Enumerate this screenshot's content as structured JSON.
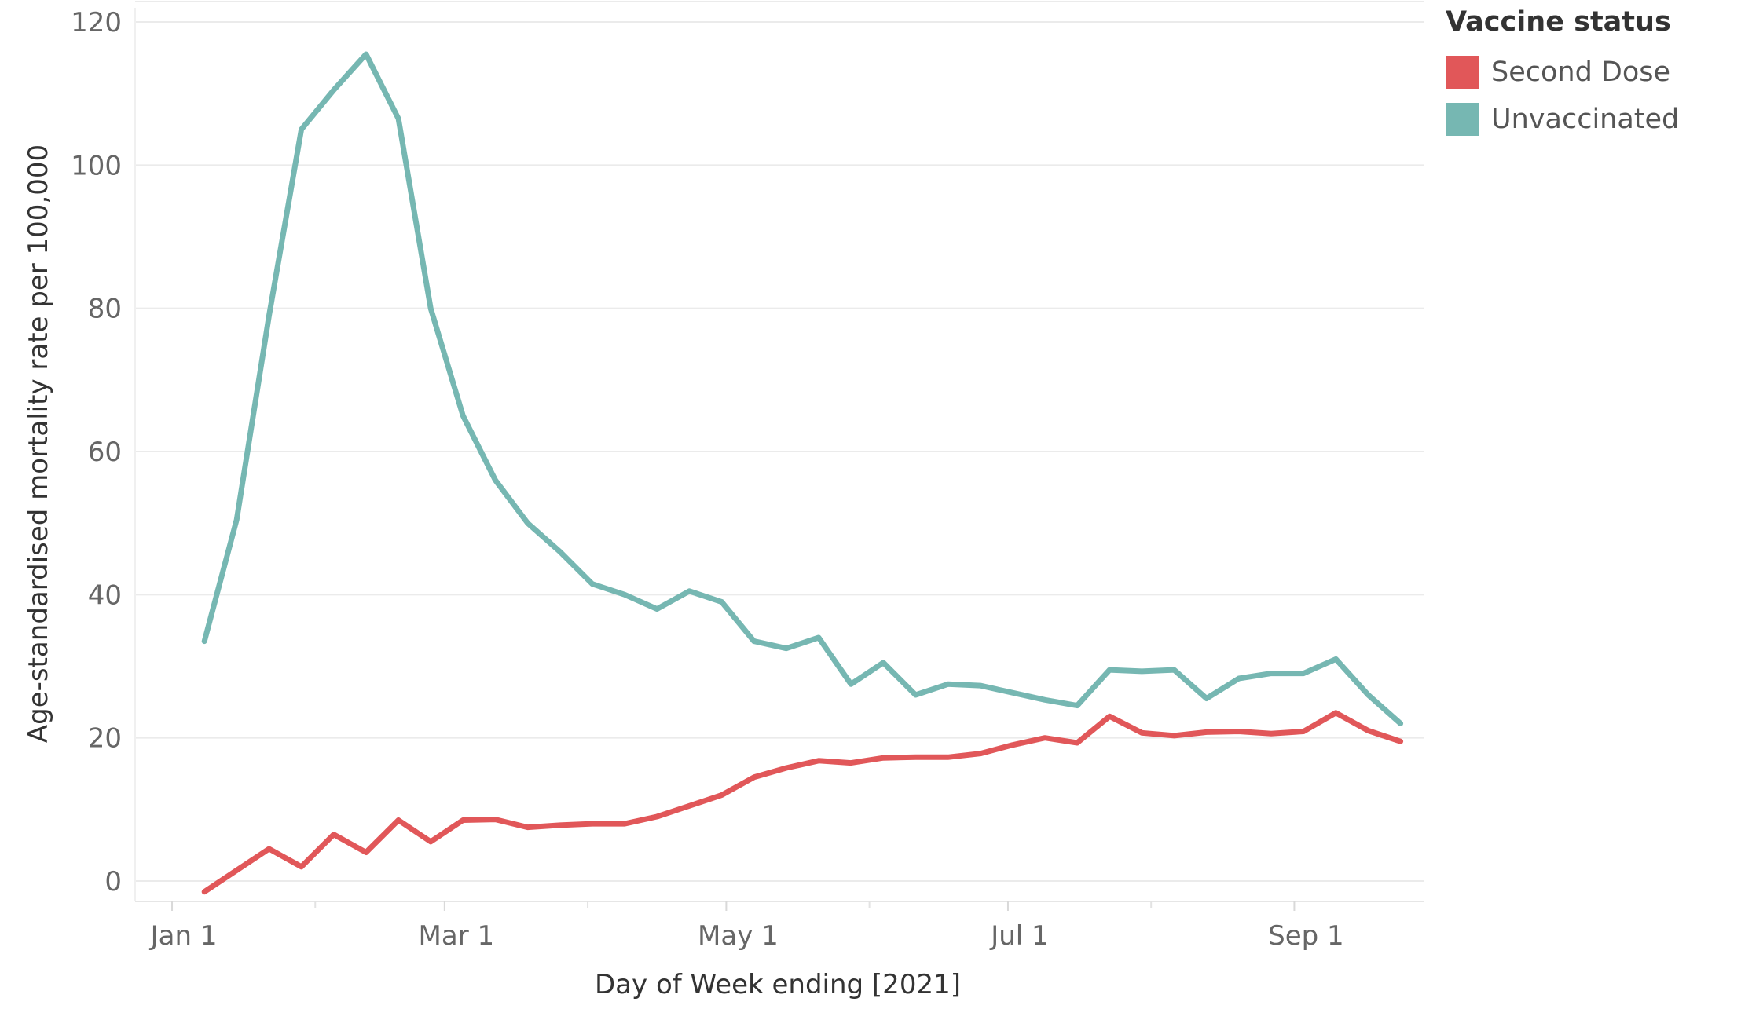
{
  "chart_data": {
    "type": "line",
    "title": "",
    "xlabel": "Day of Week ending [2021]",
    "ylabel": "Age-standardised mortality rate per 100,000",
    "ylim": [
      -3,
      120
    ],
    "yticks": [
      0,
      20,
      40,
      60,
      80,
      100,
      120
    ],
    "xticks": [
      {
        "label": "Jan 1",
        "date": "2021-01-01"
      },
      {
        "label": "Mar 1",
        "date": "2021-03-01"
      },
      {
        "label": "May 1",
        "date": "2021-05-01"
      },
      {
        "label": "Jul 1",
        "date": "2021-07-01"
      },
      {
        "label": "Sep 1",
        "date": "2021-09-01"
      }
    ],
    "xlim": [
      "2020-12-24",
      "2021-09-29"
    ],
    "grid": true,
    "legend_title": "Vaccine status",
    "legend_position": "top-right",
    "x": [
      "2021-01-08",
      "2021-01-15",
      "2021-01-22",
      "2021-01-29",
      "2021-02-05",
      "2021-02-12",
      "2021-02-19",
      "2021-02-26",
      "2021-03-05",
      "2021-03-12",
      "2021-03-19",
      "2021-03-26",
      "2021-04-02",
      "2021-04-09",
      "2021-04-16",
      "2021-04-23",
      "2021-04-30",
      "2021-05-07",
      "2021-05-14",
      "2021-05-21",
      "2021-05-28",
      "2021-06-04",
      "2021-06-11",
      "2021-06-18",
      "2021-06-25",
      "2021-07-02",
      "2021-07-09",
      "2021-07-16",
      "2021-07-23",
      "2021-07-30",
      "2021-08-06",
      "2021-08-13",
      "2021-08-20",
      "2021-08-27",
      "2021-09-03",
      "2021-09-10",
      "2021-09-17",
      "2021-09-24"
    ],
    "series": [
      {
        "name": "Second Dose",
        "color": "#e15759",
        "values": [
          -1.5,
          1.5,
          4.5,
          2,
          6.5,
          4,
          8.5,
          5.5,
          8.5,
          8.6,
          7.5,
          7.8,
          8,
          8,
          9,
          10.5,
          12,
          14.5,
          15.8,
          16.8,
          16.5,
          17.2,
          17.3,
          17.3,
          17.8,
          19,
          20,
          19.3,
          23,
          20.7,
          20.3,
          20.8,
          20.9,
          20.6,
          20.9,
          23.5,
          21,
          19.5
        ]
      },
      {
        "name": "Unvaccinated",
        "color": "#76b7b2",
        "values": [
          33.5,
          50.5,
          79,
          105,
          110.5,
          115.5,
          106.5,
          80,
          65,
          56,
          50,
          46,
          41.5,
          40,
          38,
          40.5,
          39,
          33.5,
          32.5,
          34,
          27.5,
          30.5,
          26,
          27.5,
          27.3,
          26.3,
          25.3,
          24.5,
          29.5,
          29.3,
          29.5,
          25.5,
          28.3,
          29,
          29,
          31,
          26,
          22
        ]
      }
    ]
  }
}
